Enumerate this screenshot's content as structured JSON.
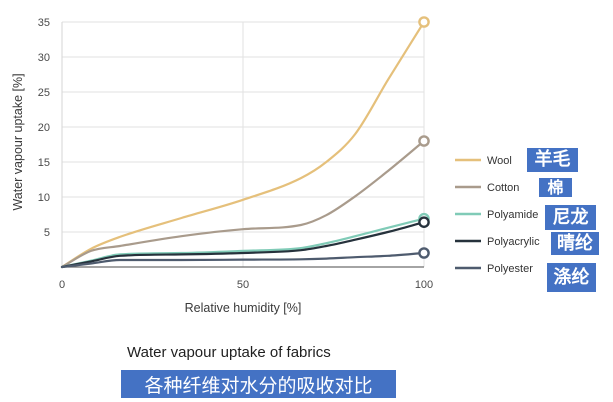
{
  "chart_data": {
    "type": "line",
    "xlabel": "Relative humidity [%]",
    "ylabel": "Water vapour uptake [%]",
    "xlim": [
      0,
      100
    ],
    "ylim": [
      0,
      35
    ],
    "x_ticks": [
      0,
      50,
      100
    ],
    "y_ticks": [
      5,
      10,
      15,
      20,
      25,
      30,
      35
    ],
    "grid": true,
    "legend": "right",
    "x": [
      0,
      8,
      16,
      33,
      50,
      66,
      73,
      81,
      90,
      100
    ],
    "series": [
      {
        "name": "Wool",
        "zh_label": "羊毛",
        "color": "#e5c07b",
        "values": [
          0,
          2.6,
          4.3,
          7.0,
          9.6,
          12.7,
          15.0,
          19.0,
          26.7,
          35
        ]
      },
      {
        "name": "Cotton",
        "zh_label": "棉",
        "color": "#a99b8c",
        "values": [
          0,
          2.3,
          3.0,
          4.4,
          5.4,
          6.0,
          7.4,
          10.1,
          13.7,
          18
        ]
      },
      {
        "name": "Polyamide",
        "zh_label": "尼龙",
        "color": "#80cbb7",
        "values": [
          0,
          0.9,
          1.8,
          2.0,
          2.3,
          2.7,
          3.4,
          4.4,
          5.6,
          6.9
        ]
      },
      {
        "name": "Polyacrylic",
        "zh_label": "晴纶",
        "color": "#26323c",
        "values": [
          0,
          0.8,
          1.6,
          1.8,
          2.0,
          2.4,
          3.0,
          3.9,
          5.0,
          6.4
        ]
      },
      {
        "name": "Polyester",
        "zh_label": "涤纶",
        "color": "#4e5b6e",
        "values": [
          0,
          0.5,
          1.0,
          1.0,
          1.05,
          1.1,
          1.2,
          1.4,
          1.6,
          2.0
        ]
      }
    ]
  },
  "caption": "Water vapour uptake of fabrics",
  "caption_zh": "各种纤维对水分的吸收对比"
}
